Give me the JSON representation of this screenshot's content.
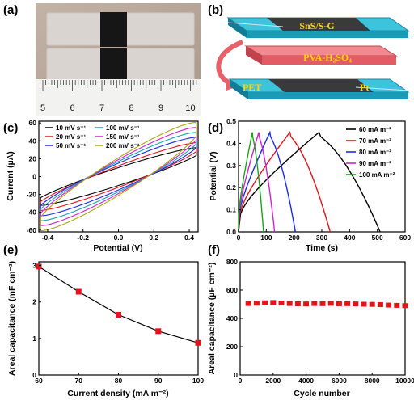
{
  "panel_labels": [
    "(a)",
    "(b)",
    "(c)",
    "(d)",
    "(e)",
    "(f)"
  ],
  "photo": {
    "ruler_numbers": [
      "5",
      "6",
      "7",
      "8",
      "9",
      "10"
    ],
    "colors": {
      "background": "#b9a89a",
      "film": "#d9d3cf",
      "electrode": "#141414"
    }
  },
  "diagram": {
    "top_label": "SnS/S-G",
    "middle_label": "PVA-H₂SO₄",
    "bottom_left_label": "PET",
    "bottom_right_label": "Pt",
    "colors": {
      "substrate": "#21a9c6",
      "electrolyte": "#e8606a",
      "active": "#3a3a3a",
      "text": "#ffd800",
      "arrow": "#e8606a"
    }
  },
  "chart_data": [
    {
      "type": "line",
      "panel": "(c)",
      "xlabel": "Potential (V)",
      "ylabel": "Current (µA)",
      "xlim": [
        -0.45,
        0.45
      ],
      "ylim": [
        -62,
        62
      ],
      "xticks": [
        -0.4,
        -0.2,
        0.0,
        0.2,
        0.4
      ],
      "xtick_labels": [
        "-0.4",
        "-0.2",
        "0.0",
        "0.2",
        "0.4"
      ],
      "yticks": [
        -60,
        -40,
        -20,
        0,
        20,
        40,
        60
      ],
      "ytick_labels": [
        "-60",
        "-40",
        "-20",
        "0",
        "20",
        "40",
        "60"
      ],
      "legend_placement": "top-left, two columns",
      "series": [
        {
          "name": "10 mV s⁻¹",
          "color": "#000000",
          "i0": 28,
          "width": 8
        },
        {
          "name": "20 mV s⁻¹",
          "color": "#e0141b",
          "i0": 33,
          "width": 10
        },
        {
          "name": "50 mV s⁻¹",
          "color": "#1a2ce6",
          "i0": 38,
          "width": 13
        },
        {
          "name": "100 mV s⁻¹",
          "color": "#17a2b2",
          "i0": 43,
          "width": 15
        },
        {
          "name": "150 mV s⁻¹",
          "color": "#d21fd2",
          "i0": 48,
          "width": 17
        },
        {
          "name": "200 mV s⁻¹",
          "color": "#a8a810",
          "i0": 53,
          "width": 19
        }
      ]
    },
    {
      "type": "line",
      "panel": "(d)",
      "xlabel": "Time (s)",
      "ylabel": "Potential (V)",
      "xlim": [
        0,
        600
      ],
      "ylim": [
        0,
        0.5
      ],
      "xticks": [
        0,
        100,
        200,
        300,
        400,
        500,
        600
      ],
      "xtick_labels": [
        "0",
        "100",
        "200",
        "300",
        "400",
        "500",
        "600"
      ],
      "yticks": [
        0.0,
        0.1,
        0.2,
        0.3,
        0.4,
        0.5
      ],
      "ytick_labels": [
        "0.0",
        "0.1",
        "0.2",
        "0.3",
        "0.4",
        "0.5"
      ],
      "legend_placement": "top-right",
      "series": [
        {
          "name": "60 mA m⁻²",
          "color": "#000000",
          "t_peak": 290,
          "t_end": 510
        },
        {
          "name": "70 mA m⁻²",
          "color": "#e0141b",
          "t_peak": 185,
          "t_end": 330
        },
        {
          "name": "80 mA m⁻²",
          "color": "#1a2ce6",
          "t_peak": 113,
          "t_end": 205
        },
        {
          "name": "90 mA m⁻²",
          "color": "#d21fd2",
          "t_peak": 73,
          "t_end": 130
        },
        {
          "name": "100 mA m⁻²",
          "color": "#17a417",
          "t_peak": 50,
          "t_end": 90
        }
      ]
    },
    {
      "type": "line",
      "panel": "(e)",
      "xlabel": "Current density (mA m⁻²)",
      "ylabel": "Areal capacitance (mF cm⁻²)",
      "xlim": [
        60,
        100
      ],
      "ylim": [
        0,
        3.1
      ],
      "xticks": [
        60,
        70,
        80,
        90,
        100
      ],
      "xtick_labels": [
        "60",
        "70",
        "80",
        "90",
        "100"
      ],
      "yticks": [
        0,
        1,
        2,
        3
      ],
      "ytick_labels": [
        "0",
        "1",
        "2",
        "3"
      ],
      "marker_color": "#e0141b",
      "x": [
        60,
        70,
        80,
        90,
        100
      ],
      "y": [
        2.97,
        2.28,
        1.65,
        1.2,
        0.88
      ]
    },
    {
      "type": "scatter",
      "panel": "(f)",
      "xlabel": "Cycle number",
      "ylabel": "Areal capacitance (µF cm⁻²)",
      "xlim": [
        0,
        10000
      ],
      "ylim": [
        0,
        800
      ],
      "xticks": [
        0,
        2000,
        4000,
        6000,
        8000,
        10000
      ],
      "xtick_labels": [
        "0",
        "2000",
        "4000",
        "6000",
        "8000",
        "10000"
      ],
      "yticks": [
        0,
        200,
        400,
        600,
        800
      ],
      "ytick_labels": [
        "0",
        "200",
        "400",
        "600",
        "800"
      ],
      "marker_color": "#e0141b",
      "x": [
        500,
        1000,
        1500,
        2000,
        2500,
        3000,
        3500,
        4000,
        4500,
        5000,
        5500,
        6000,
        6500,
        7000,
        7500,
        8000,
        8500,
        9000,
        9500,
        10000
      ],
      "y": [
        505,
        507,
        510,
        512,
        508,
        505,
        503,
        502,
        505,
        504,
        506,
        503,
        504,
        502,
        500,
        499,
        497,
        494,
        492,
        490
      ]
    }
  ]
}
